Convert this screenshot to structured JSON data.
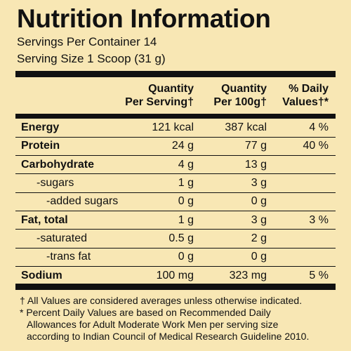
{
  "header": {
    "title": "Nutrition Information",
    "servings": "Servings Per Container 14",
    "serving_size": "Serving Size 1 Scoop (31 g)"
  },
  "table": {
    "columns": [
      [
        "Quantity",
        "Per Serving†"
      ],
      [
        "Quantity",
        "Per 100g†"
      ],
      [
        "% Daily",
        "Values†*"
      ]
    ],
    "rows": [
      {
        "name": "Energy",
        "bold": true,
        "cells": [
          "121 kcal",
          "387 kcal",
          "4 %"
        ]
      },
      {
        "name": "Protein",
        "bold": true,
        "cells": [
          "24 g",
          "77 g",
          "40 %"
        ]
      },
      {
        "name": "Carbohydrate",
        "bold": true,
        "cells": [
          "4 g",
          "13 g",
          null
        ]
      },
      {
        "name": "-sugars",
        "bold": false,
        "indent": 1,
        "cells": [
          "1 g",
          "3 g",
          null
        ]
      },
      {
        "name": "-added sugars",
        "bold": false,
        "indent": 2,
        "cells": [
          "0 g",
          "0 g",
          null
        ]
      },
      {
        "name": "Fat, total",
        "bold": true,
        "cells": [
          "1 g",
          "3 g",
          "3 %"
        ]
      },
      {
        "name": "-saturated",
        "bold": false,
        "indent": 1,
        "cells": [
          "0.5 g",
          "2 g",
          null
        ]
      },
      {
        "name": "-trans fat",
        "bold": false,
        "indent": 2,
        "cells": [
          "0 g",
          "0 g",
          null
        ]
      },
      {
        "name": "Sodium",
        "bold": true,
        "cells": [
          "100 mg",
          "323 mg",
          "5 %"
        ]
      }
    ]
  },
  "footnotes": [
    "† All Values are considered averages unless otherwise indicated.",
    "* Percent Daily Values are based on Recommended Daily",
    "Allowances for Adult Moderate Work Men per serving size",
    "according to Indian Council of Medical Research Guideline 2010."
  ]
}
